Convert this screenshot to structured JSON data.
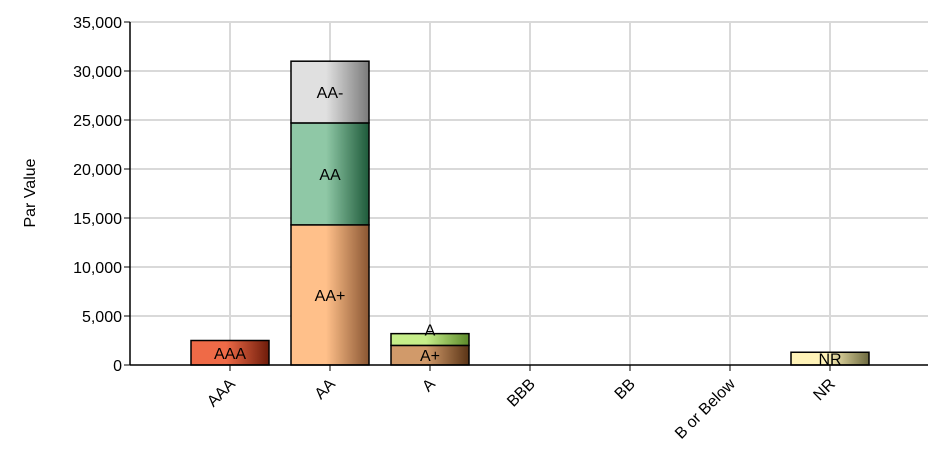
{
  "chart_data": {
    "type": "bar",
    "stacked": true,
    "title": "",
    "xlabel": "",
    "ylabel": "Par Value",
    "ylim": [
      0,
      35000
    ],
    "yticks": [
      0,
      5000,
      10000,
      15000,
      20000,
      25000,
      30000,
      35000
    ],
    "ytick_labels": [
      "0",
      "5,000",
      "10,000",
      "15,000",
      "20,000",
      "25,000",
      "30,000",
      "35,000"
    ],
    "grid": true,
    "categories": [
      "AAA",
      "AA",
      "A",
      "BBB",
      "BB",
      "B or Below",
      "NR"
    ],
    "bars": [
      {
        "category": "AAA",
        "segments": [
          {
            "label": "AAA",
            "value": 2500,
            "color_light": "#ef6a47",
            "color_dark": "#6e1c0a"
          }
        ]
      },
      {
        "category": "AA",
        "segments": [
          {
            "label": "AA+",
            "value": 14300,
            "color_light": "#ffc08a",
            "color_dark": "#8a5632"
          },
          {
            "label": "AA",
            "value": 10400,
            "color_light": "#8fc8a6",
            "color_dark": "#1e5a3a"
          },
          {
            "label": "AA-",
            "value": 6300,
            "color_light": "#e0e0e0",
            "color_dark": "#7a7a7a"
          }
        ]
      },
      {
        "category": "A",
        "segments": [
          {
            "label": "A+",
            "value": 2000,
            "color_light": "#d19a6a",
            "color_dark": "#5a3416"
          },
          {
            "label": "A",
            "value": 1200,
            "color_light": "#c6ee8a",
            "color_dark": "#5c8a2a"
          }
        ]
      },
      {
        "category": "BBB",
        "segments": []
      },
      {
        "category": "BB",
        "segments": []
      },
      {
        "category": "B or Below",
        "segments": []
      },
      {
        "category": "NR",
        "segments": [
          {
            "label": "NR",
            "value": 1300,
            "color_light": "#fff3b8",
            "color_dark": "#6d6a40"
          }
        ]
      }
    ]
  }
}
